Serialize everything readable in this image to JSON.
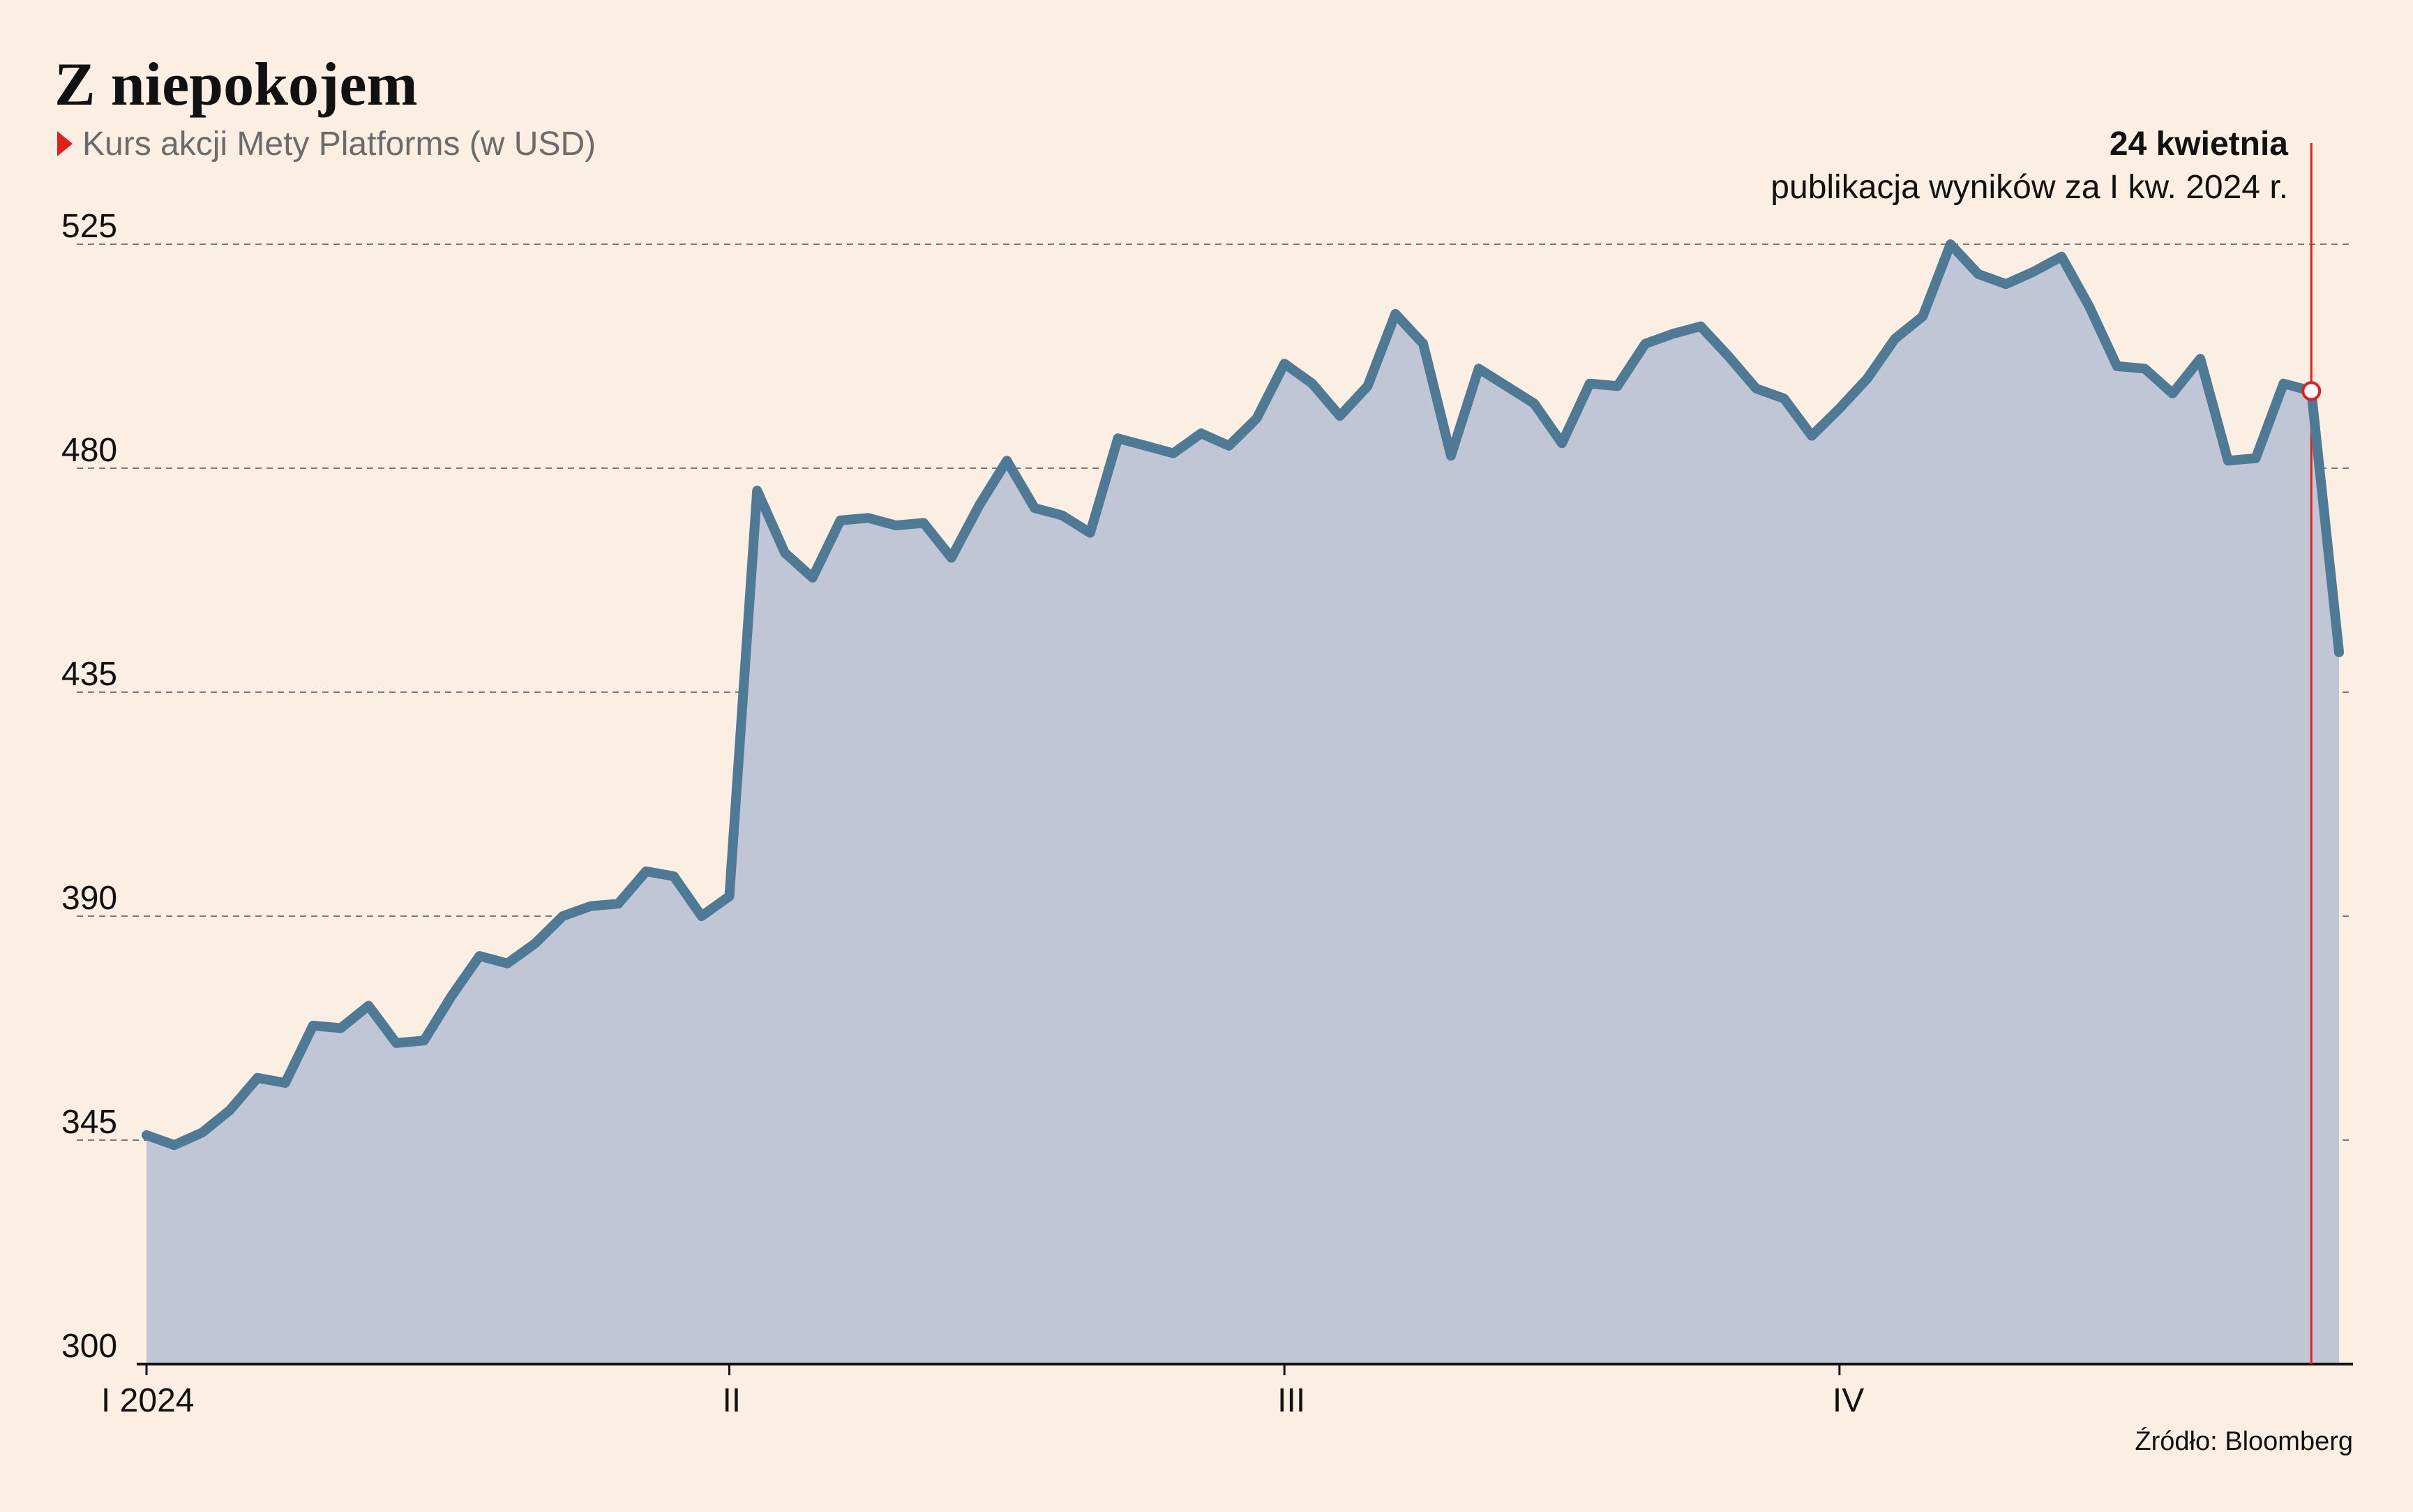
{
  "chart_data": {
    "type": "area",
    "title": "Z niepokojem",
    "subtitle": "Kurs akcji Mety Platforms (w USD)",
    "source": "Źródło: Bloomberg",
    "ylim": [
      300,
      525
    ],
    "yticks": [
      "525",
      "480",
      "435",
      "390",
      "345",
      "300"
    ],
    "grid": true,
    "x_tick_labels": [
      "I 2024",
      "II",
      "III",
      "IV"
    ],
    "x_tick_positions": [
      1,
      22,
      42,
      62
    ],
    "xlim": [
      1,
      80
    ],
    "series": [
      {
        "values": [
          346,
          344,
          346.5,
          351,
          357.5,
          356.5,
          368,
          367.5,
          372,
          364.5,
          365,
          374,
          382,
          380.5,
          384.5,
          390,
          392,
          392.5,
          399,
          398,
          390,
          394,
          475.5,
          463,
          458,
          469.5,
          470,
          468.5,
          469,
          462,
          472.5,
          481.5,
          472,
          470.5,
          467,
          486,
          484.5,
          483,
          487,
          484.5,
          490,
          501,
          497,
          490.5,
          496.5,
          511,
          505,
          482.5,
          500,
          496.5,
          493,
          485,
          497,
          496.5,
          505,
          507,
          508.5,
          502.5,
          496,
          494,
          486.5,
          492,
          498,
          506,
          510.5,
          525,
          519,
          517,
          519.5,
          522.5,
          512.5,
          500.5,
          500,
          495,
          502,
          481.5,
          482,
          497,
          495.5,
          443
        ]
      }
    ],
    "annotation": {
      "x": 79,
      "value": 495.5,
      "label_bold": "24 kwietnia",
      "label": "publikacja wyników za I kw. 2024 r."
    },
    "colors": {
      "line": "#4f7a95",
      "area": "#c1c6d6",
      "marker": "#e0201b",
      "background": "#fbeee2",
      "grid": "#7a7a7a"
    }
  }
}
